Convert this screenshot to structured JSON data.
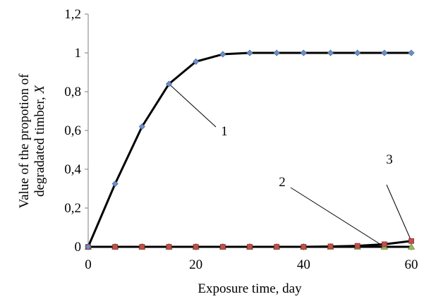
{
  "chart_data": {
    "type": "line",
    "title": "",
    "xlabel": "Exposure time, day",
    "ylabel_line1": "Value of the propotion of",
    "ylabel_line2": "degradated timber, ",
    "ylabel_var": "X",
    "xlim": [
      0,
      60
    ],
    "ylim": [
      0,
      1.2
    ],
    "x_ticks": [
      0,
      20,
      40,
      60
    ],
    "x_tick_labels": [
      "0",
      "20",
      "40",
      "60"
    ],
    "y_ticks": [
      0,
      0.2,
      0.4,
      0.6,
      0.8,
      1.0,
      1.2
    ],
    "y_tick_labels": [
      "0",
      "0,2",
      "0,4",
      "0,6",
      "0,8",
      "1",
      "1,2"
    ],
    "grid": false,
    "x": [
      0,
      5,
      10,
      15,
      20,
      25,
      30,
      35,
      40,
      45,
      50,
      55,
      60
    ],
    "series": [
      {
        "label": "1",
        "marker": "diamond",
        "marker_color": "#6d8fc4",
        "values": [
          0,
          0.325,
          0.62,
          0.84,
          0.955,
          0.993,
          1.0,
          1.0,
          1.0,
          1.0,
          1.0,
          1.0,
          1.0
        ]
      },
      {
        "label": "3",
        "marker": "square",
        "marker_color": "#c0504d",
        "values": [
          0,
          0,
          0,
          0,
          0,
          0,
          0,
          0,
          0,
          0.002,
          0.005,
          0.013,
          0.03
        ]
      },
      {
        "label": "2",
        "marker": "triangle",
        "marker_color": "#9bbb59",
        "values": [
          0,
          0,
          0,
          0,
          0,
          0,
          0,
          0,
          0,
          0,
          0,
          0,
          0
        ]
      }
    ],
    "callouts": [
      {
        "text": "1",
        "series": 0,
        "point_x": 15
      },
      {
        "text": "2",
        "series": 2,
        "point_x": 55
      },
      {
        "text": "3",
        "series": 1,
        "point_x": 60
      }
    ]
  }
}
